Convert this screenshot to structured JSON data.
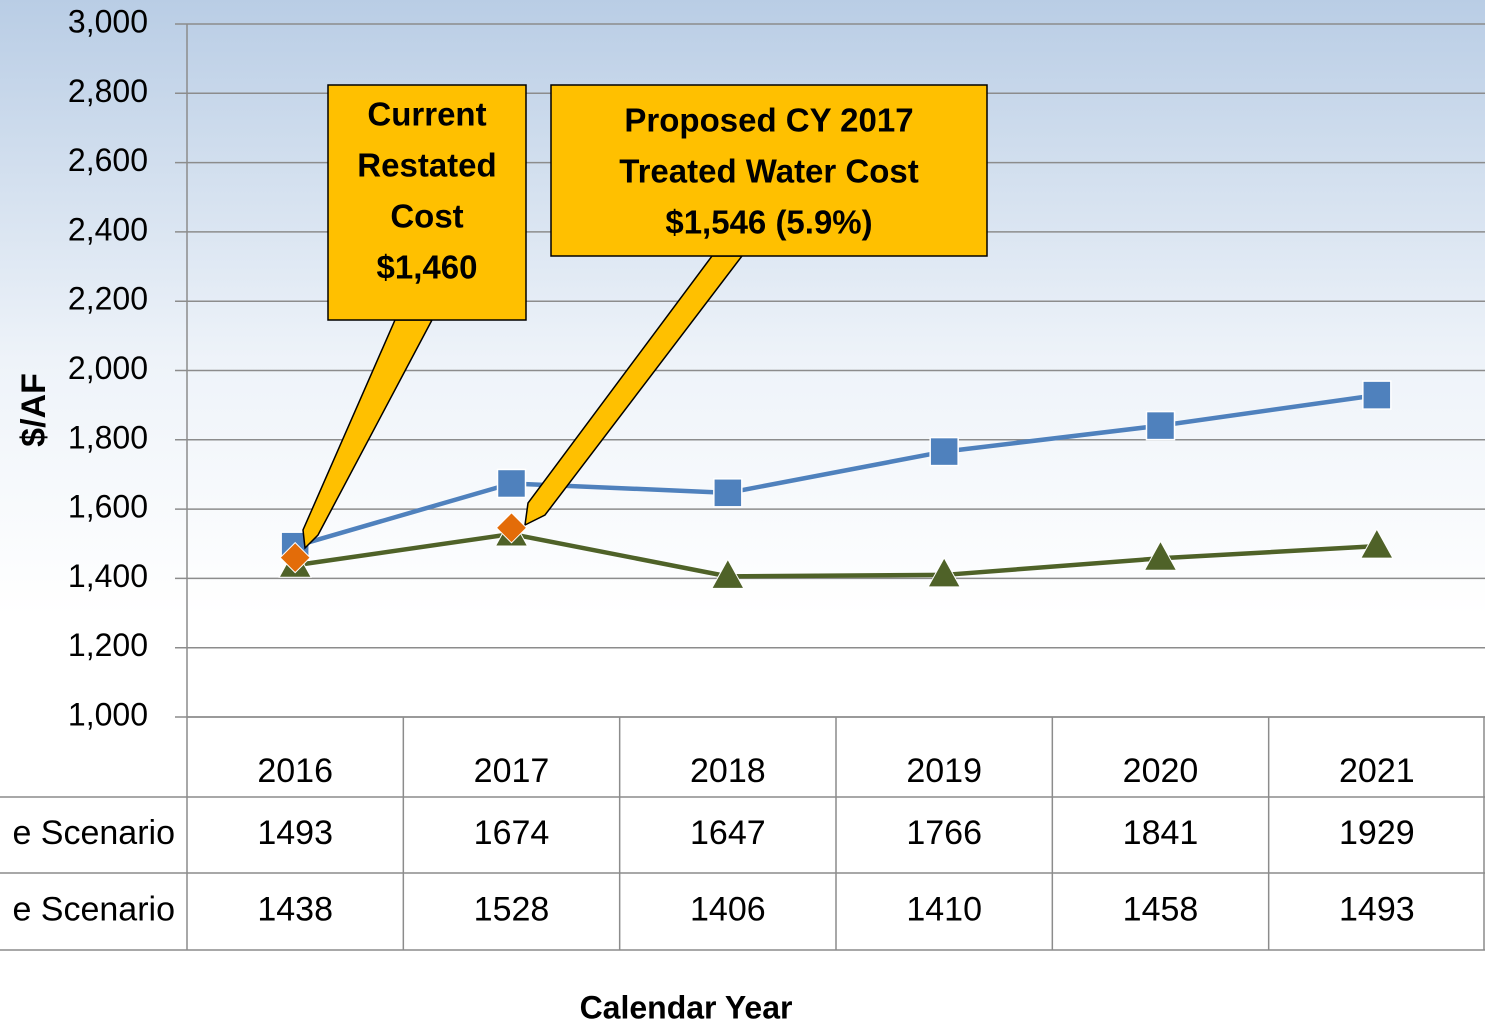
{
  "chart_data": {
    "type": "line",
    "y_label": "$/AF",
    "x_label": "Calendar Year",
    "categories": [
      "2016",
      "2017",
      "2018",
      "2019",
      "2020",
      "2021"
    ],
    "series": [
      {
        "name": "e Scenario",
        "color": "#4f81bd",
        "marker": "square",
        "values": [
          1493,
          1674,
          1647,
          1766,
          1841,
          1929
        ]
      },
      {
        "name": "e Scenario",
        "color": "#4f6228",
        "marker": "triangle",
        "values": [
          1438,
          1528,
          1406,
          1410,
          1458,
          1493
        ]
      },
      {
        "color": "#e36c09",
        "marker": "diamond",
        "values": [
          1460,
          1546,
          null,
          null,
          null,
          null
        ]
      }
    ],
    "ylim": [
      1000,
      3000
    ],
    "yticks": [
      {
        "value": 1000,
        "label": "1,000"
      },
      {
        "value": 1200,
        "label": "1,200"
      },
      {
        "value": 1400,
        "label": "1,400"
      },
      {
        "value": 1600,
        "label": "1,600"
      },
      {
        "value": 1800,
        "label": "1,800"
      },
      {
        "value": 2000,
        "label": "2,000"
      },
      {
        "value": 2200,
        "label": "2,200"
      },
      {
        "value": 2400,
        "label": "2,400"
      },
      {
        "value": 2600,
        "label": "2,600"
      },
      {
        "value": 2800,
        "label": "2,800"
      },
      {
        "value": 3000,
        "label": "3,000"
      }
    ],
    "grid": true,
    "annotations": [
      {
        "lines": [
          "Current",
          "Restated",
          "Cost",
          "$1,460"
        ],
        "color": "#ffc000"
      },
      {
        "lines": [
          "Proposed CY 2017",
          "Treated Water Cost",
          "$1,546 (5.9%)"
        ],
        "color": "#ffc000"
      }
    ]
  }
}
